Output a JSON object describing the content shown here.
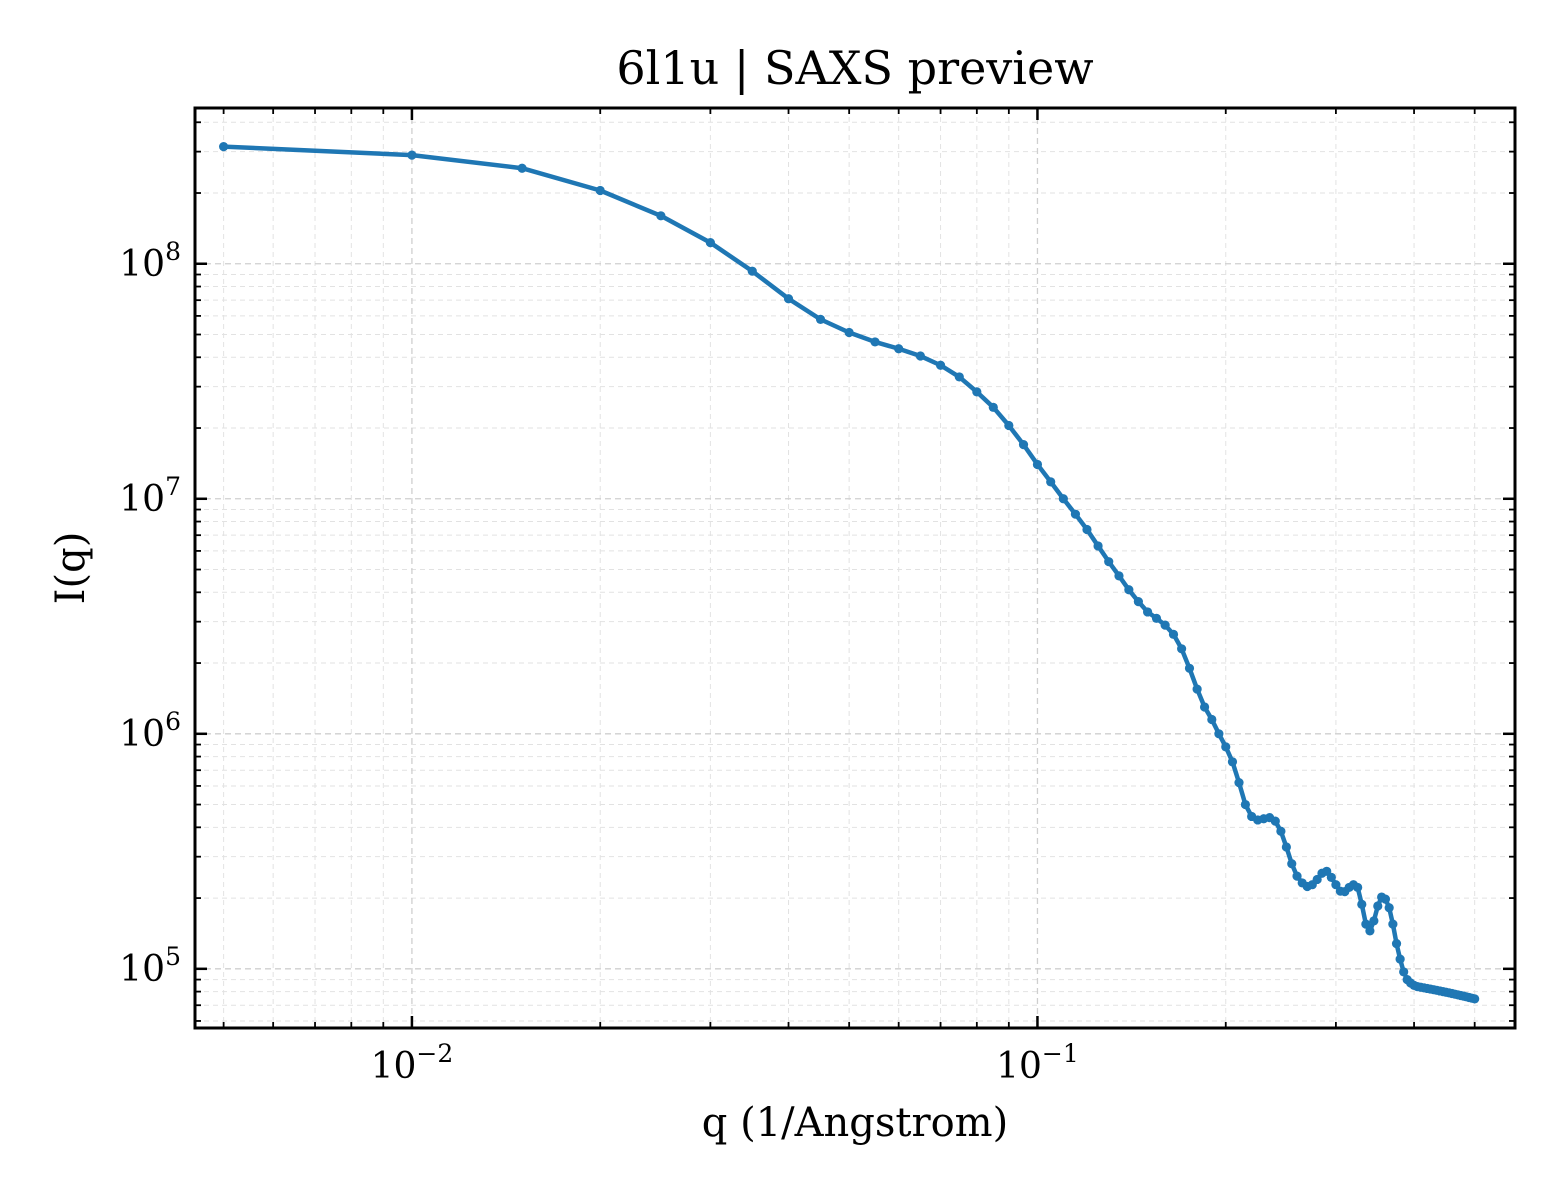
{
  "chart_data": {
    "type": "line",
    "title": "6l1u | SAXS preview",
    "xlabel": "q (1/Angstrom)",
    "ylabel": "I(q)",
    "xscale": "log",
    "yscale": "log",
    "xlim": [
      0.0045,
      0.58
    ],
    "ylim": [
      56000,
      460000000
    ],
    "x_ticks": [
      {
        "value": 0.01,
        "base": "10",
        "exp": "−2"
      },
      {
        "value": 0.1,
        "base": "10",
        "exp": "−1"
      }
    ],
    "y_ticks": [
      {
        "value": 100000,
        "base": "10",
        "exp": "5"
      },
      {
        "value": 1000000,
        "base": "10",
        "exp": "6"
      },
      {
        "value": 10000000,
        "base": "10",
        "exp": "7"
      },
      {
        "value": 100000000,
        "base": "10",
        "exp": "8"
      }
    ],
    "grid": true,
    "series_color": "#1f77b4",
    "series": [
      {
        "x": [
          0.005,
          0.01,
          0.015,
          0.02,
          0.025,
          0.03,
          0.035,
          0.04,
          0.045,
          0.05,
          0.055,
          0.06,
          0.065,
          0.07,
          0.075,
          0.08,
          0.085,
          0.09,
          0.095,
          0.1,
          0.105,
          0.11,
          0.115,
          0.12,
          0.125,
          0.13,
          0.135,
          0.14,
          0.145,
          0.15,
          0.155,
          0.16,
          0.165,
          0.17,
          0.175,
          0.18,
          0.185,
          0.19,
          0.195,
          0.2,
          0.205,
          0.21,
          0.215,
          0.22,
          0.225,
          0.23,
          0.235,
          0.24,
          0.245,
          0.25,
          0.255,
          0.26,
          0.265,
          0.27,
          0.275,
          0.28,
          0.285,
          0.29,
          0.295,
          0.3,
          0.305,
          0.31,
          0.315,
          0.32,
          0.325,
          0.33,
          0.335,
          0.34,
          0.345,
          0.35,
          0.355,
          0.36,
          0.365,
          0.37,
          0.375,
          0.38,
          0.385,
          0.39,
          0.395,
          0.4,
          0.405,
          0.41,
          0.415,
          0.42,
          0.425,
          0.43,
          0.435,
          0.44,
          0.445,
          0.45,
          0.455,
          0.46,
          0.465,
          0.47,
          0.475,
          0.48,
          0.485,
          0.49,
          0.495,
          0.5
        ],
        "y": [
          315000000,
          290000000,
          255000000,
          205000000,
          160000000,
          123000000,
          93000000,
          71000000,
          58000000,
          51000000,
          46500000,
          43500000,
          40500000,
          37000000,
          33000000,
          28500000,
          24500000,
          20500000,
          17000000,
          14000000,
          11800000,
          10000000,
          8600000,
          7400000,
          6300000,
          5400000,
          4700000,
          4100000,
          3650000,
          3300000,
          3100000,
          2900000,
          2650000,
          2300000,
          1900000,
          1550000,
          1300000,
          1150000,
          1000000,
          880000,
          760000,
          620000,
          500000,
          445000,
          430000,
          435000,
          440000,
          425000,
          385000,
          330000,
          280000,
          248000,
          232000,
          224000,
          228000,
          240000,
          255000,
          260000,
          245000,
          228000,
          214000,
          213000,
          222000,
          228000,
          222000,
          188000,
          155000,
          145000,
          160000,
          185000,
          202000,
          198000,
          182000,
          155000,
          128000,
          110000,
          97000,
          90000,
          87000,
          85000,
          84000,
          83500,
          83000,
          82500,
          82000,
          81500,
          81000,
          80500,
          80000,
          79500,
          79000,
          78500,
          78000,
          77500,
          77000,
          76500,
          76000,
          75500,
          75000,
          74500
        ]
      }
    ]
  }
}
